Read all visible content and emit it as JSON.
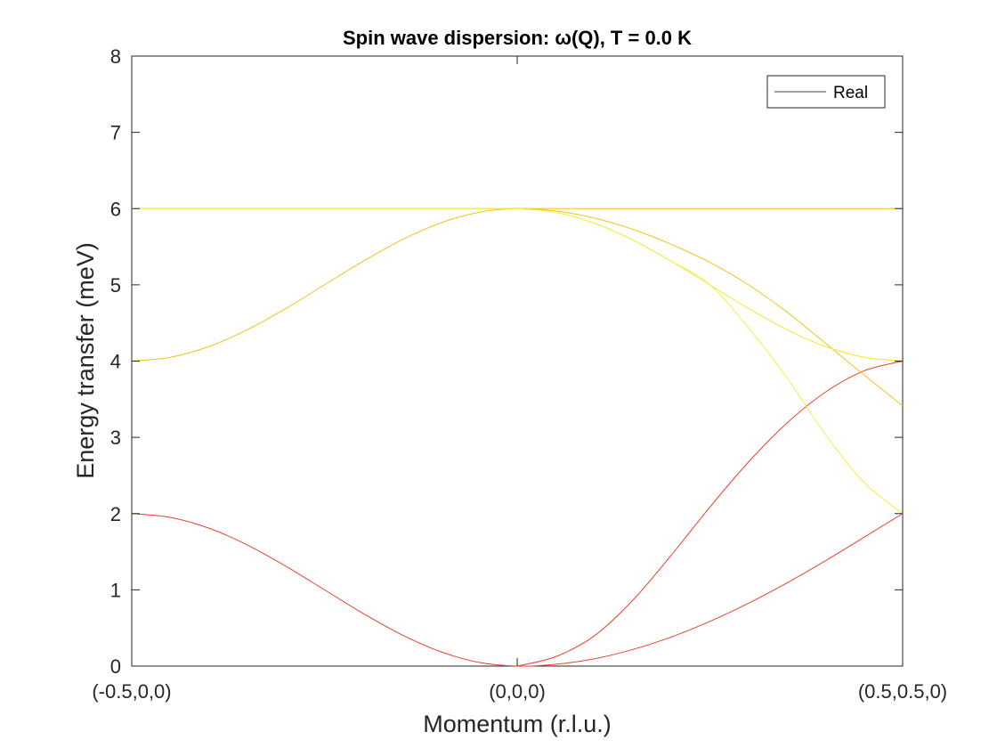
{
  "chart_data": {
    "type": "line",
    "title": "Spin wave dispersion: ω(Q), T =   0.0 K",
    "xlabel": "Momentum (r.l.u.)",
    "ylabel": "Energy transfer (meV)",
    "ylim": [
      0,
      8
    ],
    "yticks": [
      "0",
      "1",
      "2",
      "3",
      "4",
      "5",
      "6",
      "7",
      "8"
    ],
    "xticks": [
      "(-0.5,0,0)",
      "(0,0,0)",
      "(0.5,0.5,0)"
    ],
    "x": [
      0,
      0.05,
      0.1,
      0.15,
      0.2,
      0.25,
      0.3,
      0.35,
      0.4,
      0.45,
      0.5,
      0.55,
      0.6,
      0.65,
      0.7,
      0.75,
      0.8,
      0.85,
      0.9,
      0.95,
      1.0
    ],
    "grid": false,
    "legend": {
      "position": "top-right",
      "entries": [
        "Real"
      ]
    },
    "series": [
      {
        "name": "Real",
        "color": "#e8422e",
        "values": [
          2.0,
          1.951,
          1.809,
          1.588,
          1.309,
          1.0,
          0.691,
          0.412,
          0.191,
          0.049,
          0.0,
          0.024,
          0.095,
          0.218,
          0.382,
          0.586,
          0.824,
          1.091,
          1.382,
          1.69,
          2.0
        ]
      },
      {
        "name": "",
        "color": "#e8422e",
        "values": [
          null,
          null,
          null,
          null,
          null,
          null,
          null,
          null,
          null,
          null,
          0.0,
          0.124,
          0.396,
          0.864,
          1.456,
          2.086,
          2.676,
          3.188,
          3.594,
          3.872,
          4.0
        ]
      },
      {
        "name": "",
        "color": "#f0c419",
        "values": [
          4.0,
          4.049,
          4.191,
          4.412,
          4.691,
          5.0,
          5.309,
          5.588,
          5.809,
          5.951,
          6.0,
          5.969,
          5.876,
          5.727,
          5.531,
          5.294,
          5.0,
          4.643,
          4.233,
          3.817,
          3.414
        ]
      },
      {
        "name": "",
        "color": "#f5e52a",
        "values": [
          null,
          null,
          null,
          null,
          null,
          null,
          null,
          null,
          null,
          null,
          6.0,
          5.951,
          5.809,
          5.588,
          5.309,
          5.0,
          4.691,
          4.412,
          4.191,
          4.049,
          4.0
        ]
      },
      {
        "name": "",
        "color": "#f0c419",
        "values": [
          6.0,
          6.0,
          6.0,
          6.0,
          6.0,
          6.0,
          6.0,
          6.0,
          6.0,
          6.0,
          6.0,
          6.0,
          6.0,
          6.0,
          6.0,
          6.0,
          6.0,
          6.0,
          6.0,
          6.0,
          6.0
        ]
      },
      {
        "name": "",
        "color": "#f5ec47",
        "values": [
          6.0,
          6.0,
          6.0,
          6.0,
          6.0,
          6.0,
          6.0,
          6.0,
          6.0,
          6.0,
          6.0,
          5.951,
          5.809,
          5.588,
          5.309,
          5.0,
          4.437,
          3.781,
          3.035,
          2.407,
          2.0
        ]
      }
    ]
  }
}
